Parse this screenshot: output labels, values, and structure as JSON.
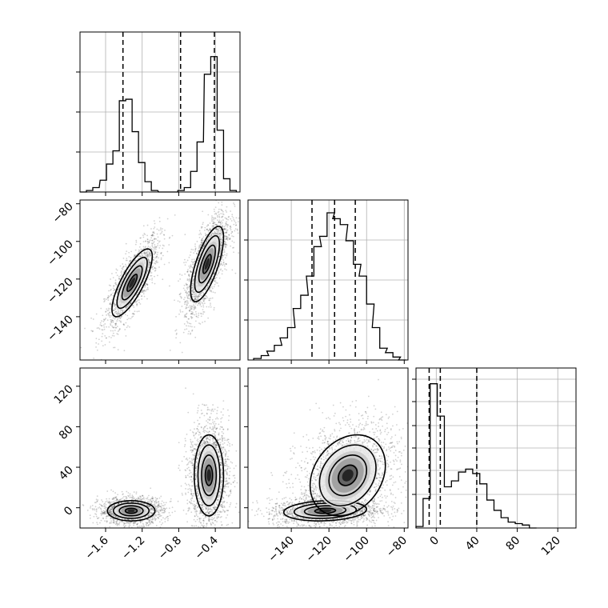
{
  "chart_data": {
    "type": "corner",
    "parameters": [
      "",
      "",
      ""
    ],
    "hist1d": [
      {
        "param": 0,
        "xlim": [
          -1.88,
          -0.13
        ],
        "x_ticks": [
          "-1.6",
          "-1.2",
          "-0.8",
          "-0.4"
        ],
        "x_tick_values": [
          -1.6,
          -1.2,
          -0.8,
          -0.4
        ],
        "grid_y_fraction": [
          0.25,
          0.5,
          0.75
        ],
        "quantiles": [
          -1.41,
          -0.78,
          -0.41
        ],
        "bins": [
          {
            "x": -1.88,
            "h": 0.0
          },
          {
            "x": -1.81,
            "h": 0.01
          },
          {
            "x": -1.74,
            "h": 0.03
          },
          {
            "x": -1.66,
            "h": 0.08
          },
          {
            "x": -1.59,
            "h": 0.19
          },
          {
            "x": -1.52,
            "h": 0.28
          },
          {
            "x": -1.45,
            "h": 0.62
          },
          {
            "x": -1.38,
            "h": 0.63
          },
          {
            "x": -1.31,
            "h": 0.41
          },
          {
            "x": -1.24,
            "h": 0.2
          },
          {
            "x": -1.17,
            "h": 0.07
          },
          {
            "x": -1.1,
            "h": 0.01
          },
          {
            "x": -1.02,
            "h": 0.0
          },
          {
            "x": -0.95,
            "h": 0.0
          },
          {
            "x": -0.88,
            "h": 0.0
          },
          {
            "x": -0.81,
            "h": 0.01
          },
          {
            "x": -0.74,
            "h": 0.03
          },
          {
            "x": -0.67,
            "h": 0.14
          },
          {
            "x": -0.6,
            "h": 0.34
          },
          {
            "x": -0.52,
            "h": 0.8
          },
          {
            "x": -0.45,
            "h": 0.92
          },
          {
            "x": -0.38,
            "h": 0.42
          },
          {
            "x": -0.31,
            "h": 0.09
          },
          {
            "x": -0.24,
            "h": 0.01
          }
        ]
      },
      {
        "param": 1,
        "xlim": [
          -163,
          -78
        ],
        "x_ticks": [
          "-140",
          "-120",
          "-100",
          "-80"
        ],
        "x_tick_values": [
          -140,
          -120,
          -100,
          -80
        ],
        "grid_y_fraction": [
          0.25,
          0.5,
          0.75
        ],
        "quantiles": [
          -129,
          -117,
          -106
        ],
        "bins": [
          {
            "x": -160,
            "h": 0.01
          },
          {
            "x": -156,
            "h": 0.03
          },
          {
            "x": -153,
            "h": 0.06
          },
          {
            "x": -149,
            "h": 0.1
          },
          {
            "x": -146,
            "h": 0.15
          },
          {
            "x": -142,
            "h": 0.22
          },
          {
            "x": -139,
            "h": 0.35
          },
          {
            "x": -135,
            "h": 0.44
          },
          {
            "x": -132,
            "h": 0.57
          },
          {
            "x": -128,
            "h": 0.77
          },
          {
            "x": -125,
            "h": 0.84
          },
          {
            "x": -121,
            "h": 1.0
          },
          {
            "x": -118,
            "h": 0.96
          },
          {
            "x": -114,
            "h": 0.92
          },
          {
            "x": -111,
            "h": 0.81
          },
          {
            "x": -107,
            "h": 0.65
          },
          {
            "x": -104,
            "h": 0.57
          },
          {
            "x": -100,
            "h": 0.38
          },
          {
            "x": -97,
            "h": 0.22
          },
          {
            "x": -93,
            "h": 0.08
          },
          {
            "x": -90,
            "h": 0.05
          },
          {
            "x": -86,
            "h": 0.02
          },
          {
            "x": -83,
            "h": 0.0
          }
        ]
      },
      {
        "param": 2,
        "xlim": [
          -20,
          138
        ],
        "x_ticks": [
          "0",
          "40",
          "80",
          "120"
        ],
        "x_tick_values": [
          0,
          40,
          80,
          120
        ],
        "grid_y_fraction": [
          0.21,
          0.36,
          0.5,
          0.64,
          0.79,
          0.93
        ],
        "quantiles": [
          -7,
          4,
          40
        ],
        "bins": [
          {
            "x": -20,
            "h": 0.01
          },
          {
            "x": -13,
            "h": 0.2
          },
          {
            "x": -6,
            "h": 0.98
          },
          {
            "x": 1,
            "h": 0.76
          },
          {
            "x": 8,
            "h": 0.28
          },
          {
            "x": 15,
            "h": 0.32
          },
          {
            "x": 22,
            "h": 0.38
          },
          {
            "x": 29,
            "h": 0.4
          },
          {
            "x": 36,
            "h": 0.37
          },
          {
            "x": 43,
            "h": 0.3
          },
          {
            "x": 50,
            "h": 0.19
          },
          {
            "x": 57,
            "h": 0.12
          },
          {
            "x": 64,
            "h": 0.07
          },
          {
            "x": 71,
            "h": 0.04
          },
          {
            "x": 78,
            "h": 0.03
          },
          {
            "x": 85,
            "h": 0.02
          },
          {
            "x": 92,
            "h": 0.0
          }
        ]
      }
    ],
    "hist2d": [
      {
        "x_param": 0,
        "y_param": 1,
        "xlim": [
          -1.88,
          -0.13
        ],
        "ylim": [
          -163,
          -78
        ],
        "y_ticks": [
          "-80",
          "-100",
          "-120",
          "-140"
        ],
        "y_tick_values": [
          -80,
          -100,
          -120,
          -140
        ],
        "clusters": [
          {
            "cx": -1.31,
            "cy": -122,
            "sx": 0.11,
            "sy": 9,
            "rho": 0.78,
            "n": 1500
          },
          {
            "cx": -0.49,
            "cy": -112,
            "sx": 0.09,
            "sy": 10,
            "rho": 0.7,
            "n": 1900
          }
        ],
        "contours": [
          {
            "cx": -1.31,
            "cy": -122,
            "sx": 0.11,
            "sy": 9,
            "rho": 0.78
          },
          {
            "cx": -0.49,
            "cy": -112,
            "sx": 0.09,
            "sy": 10,
            "rho": 0.7
          }
        ]
      },
      {
        "x_param": 0,
        "y_param": 2,
        "xlim": [
          -1.88,
          -0.13
        ],
        "ylim": [
          -20,
          138
        ],
        "y_ticks": [
          "120",
          "80",
          "40",
          "0"
        ],
        "y_tick_values": [
          120,
          80,
          40,
          0
        ],
        "clusters": [
          {
            "cx": -1.32,
            "cy": -3,
            "sx": 0.13,
            "sy": 5,
            "rho": 0,
            "n": 1500
          },
          {
            "cx": -0.47,
            "cy": 32,
            "sx": 0.08,
            "sy": 20,
            "rho": 0,
            "n": 1900
          }
        ],
        "contours": [
          {
            "cx": -1.32,
            "cy": -3,
            "sx": 0.13,
            "sy": 5,
            "rho": 0
          },
          {
            "cx": -0.47,
            "cy": 32,
            "sx": 0.08,
            "sy": 20,
            "rho": 0
          }
        ]
      },
      {
        "x_param": 1,
        "y_param": 2,
        "xlim": [
          -163,
          -78
        ],
        "ylim": [
          -20,
          138
        ],
        "clusters": [
          {
            "cx": -122,
            "cy": -3,
            "sx": 11,
            "sy": 5,
            "rho": 0.15,
            "n": 1500
          },
          {
            "cx": -110,
            "cy": 32,
            "sx": 10,
            "sy": 20,
            "rho": 0.25,
            "n": 1900
          }
        ],
        "contours": [
          {
            "cx": -122,
            "cy": -3,
            "sx": 11,
            "sy": 5,
            "rho": 0.15
          },
          {
            "cx": -110,
            "cy": 32,
            "sx": 10,
            "sy": 20,
            "rho": 0.25
          }
        ]
      }
    ],
    "contour_levels_sigma": [
      0.5,
      1.0,
      1.5,
      2.0
    ],
    "colors": {
      "line": "#000000",
      "grid": "#b0b0b0",
      "points": "#000000",
      "background": "#ffffff"
    },
    "grid": true
  }
}
